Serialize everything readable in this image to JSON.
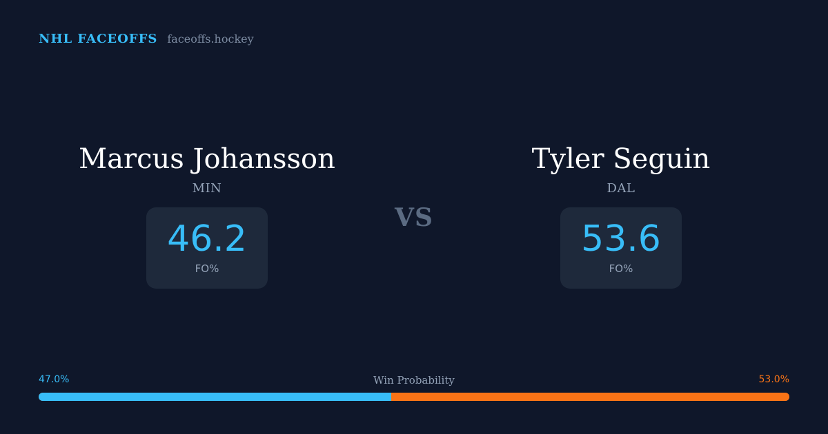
{
  "brand": {
    "title": "NHL FACEOFFS",
    "domain": "faceoffs.hockey"
  },
  "players": [
    {
      "name": "Marcus Johansson",
      "team": "MIN",
      "stat_value": "46.2",
      "stat_label": "FO%"
    },
    {
      "name": "Tyler Seguin",
      "team": "DAL",
      "stat_value": "53.6",
      "stat_label": "FO%"
    }
  ],
  "vs_label": "VS",
  "win_probability": {
    "title": "Win Probability",
    "left_label": "47.0%",
    "right_label": "53.0%",
    "left_value": 47.0,
    "right_value": 53.0
  },
  "colors": {
    "background": "#0f172a",
    "accent_left": "#38bdf8",
    "accent_right": "#f97316",
    "card": "#1e293b"
  }
}
